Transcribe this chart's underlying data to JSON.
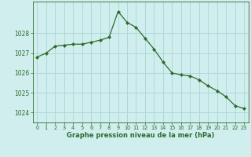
{
  "x": [
    0,
    1,
    2,
    3,
    4,
    5,
    6,
    7,
    8,
    9,
    10,
    11,
    12,
    13,
    14,
    15,
    16,
    17,
    18,
    19,
    20,
    21,
    22,
    23
  ],
  "y": [
    1026.8,
    1027.0,
    1027.35,
    1027.4,
    1027.45,
    1027.45,
    1027.55,
    1027.65,
    1027.8,
    1029.1,
    1028.55,
    1028.3,
    1027.75,
    1027.2,
    1026.55,
    1026.0,
    1025.9,
    1025.85,
    1025.65,
    1025.35,
    1025.1,
    1024.8,
    1024.35,
    1024.2
  ],
  "line_color": "#2d6a2d",
  "marker": "D",
  "marker_size": 2.2,
  "bg_color": "#d0eeee",
  "grid_color": "#b0d8d8",
  "xlabel": "Graphe pression niveau de la mer (hPa)",
  "xlabel_color": "#2d6a2d",
  "tick_color": "#2d6a2d",
  "yticks": [
    1024,
    1025,
    1026,
    1027,
    1028
  ],
  "xticks": [
    0,
    1,
    2,
    3,
    4,
    5,
    6,
    7,
    8,
    9,
    10,
    11,
    12,
    13,
    14,
    15,
    16,
    17,
    18,
    19,
    20,
    21,
    22,
    23
  ],
  "ylim": [
    1023.5,
    1029.6
  ],
  "xlim": [
    -0.5,
    23.5
  ]
}
